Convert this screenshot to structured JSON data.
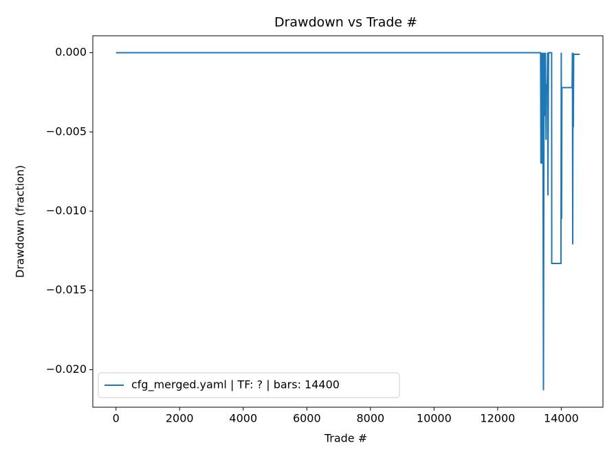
{
  "chart_data": {
    "type": "line",
    "title": "Drawdown vs Trade #",
    "x_label": "Trade #",
    "y_label": "Drawdown (fraction)",
    "x": [
      0,
      13350,
      13360,
      13380,
      13400,
      13420,
      13440,
      13460,
      13480,
      13500,
      13520,
      13530,
      13560,
      13570,
      13580,
      13600,
      13697,
      13700,
      13990,
      14000,
      14010,
      14020,
      14340,
      14350,
      14360,
      14370,
      14380,
      14390,
      14580
    ],
    "series": [
      {
        "name": "cfg_merged.yaml | TF: ? | bars: 14400",
        "color": "#1f77b4",
        "values": [
          0,
          0,
          -0.007,
          0,
          -0.007,
          0,
          -0.0213,
          0,
          -0.004,
          0,
          -0.0055,
          -0.002,
          -0.002,
          0,
          -0.009,
          0,
          0,
          -0.0133,
          -0.0133,
          0,
          -0.0105,
          -0.0022,
          -0.0022,
          0,
          -0.0121,
          0,
          -0.0047,
          -0.0001,
          -0.0001
        ]
      }
    ],
    "xlim": [
      -729,
      15310
    ],
    "ylim": [
      -0.02237,
      0.00107
    ],
    "xticks": [
      0,
      2000,
      4000,
      6000,
      8000,
      10000,
      12000,
      14000
    ],
    "yticks": [
      {
        "value": -0.02,
        "label": "−0.020"
      },
      {
        "value": -0.015,
        "label": "−0.015"
      },
      {
        "value": -0.01,
        "label": "−0.010"
      },
      {
        "value": -0.005,
        "label": "−0.005"
      },
      {
        "value": 0,
        "label": "0.000"
      }
    ],
    "legend": "lower left"
  }
}
